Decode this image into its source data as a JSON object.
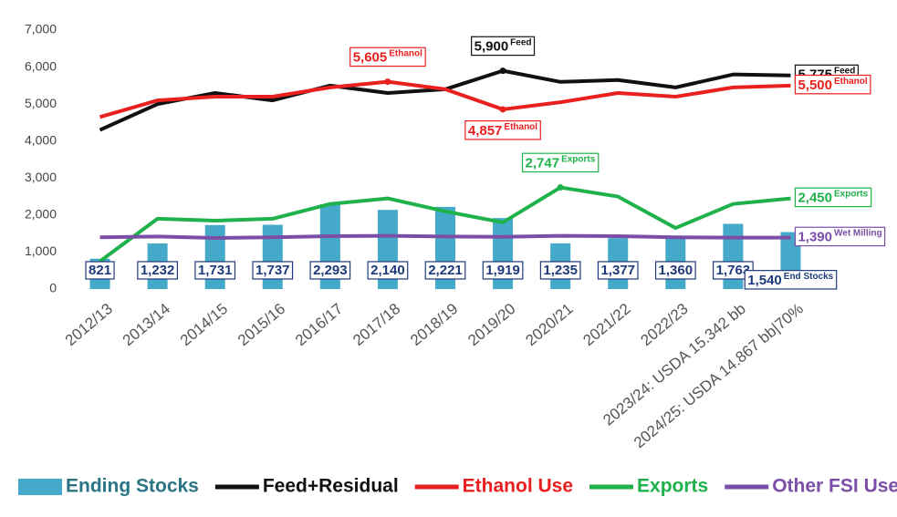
{
  "chart_data": {
    "type": "combo",
    "categories": [
      "2012/13",
      "2013/14",
      "2014/15",
      "2015/16",
      "2016/17",
      "2017/18",
      "2018/19",
      "2019/20",
      "2020/21",
      "2021/22",
      "2022/23",
      "2023/24: USDA 15.342 bb",
      "2024/25: USDA 14.867 bb|70%"
    ],
    "ylim": [
      0,
      7000
    ],
    "yticks": [
      0,
      {
        "value": 1000,
        "label": "1,000"
      },
      {
        "value": 2000,
        "label": "2,000"
      },
      {
        "value": 3000,
        "label": "3,000"
      },
      {
        "value": 4000,
        "label": "4,000"
      },
      {
        "value": 5000,
        "label": "5,000"
      },
      {
        "value": 6000,
        "label": "6,000"
      },
      {
        "value": 7000,
        "label": "7,000"
      }
    ],
    "grid": false,
    "legend": "bottom",
    "series": [
      {
        "name": "Ending Stocks",
        "type": "bar",
        "color": "#45a9c9",
        "text_color": "#2a7485",
        "label_color": "#1e3a7a",
        "values": [
          821,
          1232,
          1731,
          1737,
          2293,
          2140,
          2221,
          1919,
          1235,
          1377,
          1360,
          1763,
          1540
        ],
        "value_labels": [
          "821",
          "1,232",
          "1,731",
          "1,737",
          "2,293",
          "2,140",
          "2,221",
          "1,919",
          "1,235",
          "1,377",
          "1,360",
          "1,763",
          "1,540"
        ],
        "value_notes": [
          null,
          null,
          null,
          null,
          null,
          null,
          null,
          null,
          null,
          null,
          null,
          null,
          "End Stocks"
        ]
      },
      {
        "name": "Feed+Residual",
        "type": "line",
        "color": "#111111",
        "text_color": "#111111",
        "label_color": "#111111",
        "values": [
          4300,
          5000,
          5300,
          5100,
          5500,
          5300,
          5400,
          5900,
          5600,
          5650,
          5450,
          5800,
          5775
        ],
        "value_labels": [
          null,
          null,
          null,
          null,
          null,
          null,
          null,
          "5,900",
          null,
          null,
          null,
          null,
          "5,775"
        ],
        "value_notes": [
          null,
          null,
          null,
          null,
          null,
          null,
          null,
          "Feed",
          null,
          null,
          null,
          null,
          "Feed"
        ]
      },
      {
        "name": "Ethanol Use",
        "type": "line",
        "color": "#e8201f",
        "text_color": "#e8201f",
        "label_color": "#e8201f",
        "values": [
          4650,
          5100,
          5200,
          5200,
          5450,
          5605,
          5400,
          4857,
          5050,
          5300,
          5200,
          5450,
          5500
        ],
        "value_labels": [
          null,
          null,
          null,
          null,
          null,
          "5,605",
          null,
          "4,857",
          null,
          null,
          null,
          null,
          "5,500"
        ],
        "value_notes": [
          null,
          null,
          null,
          null,
          null,
          "Ethanol",
          null,
          "Ethanol",
          null,
          null,
          null,
          null,
          "Ethanol"
        ]
      },
      {
        "name": "Exports",
        "type": "line",
        "color": "#1fb14a",
        "text_color": "#1fb14a",
        "label_color": "#1fb14a",
        "values": [
          750,
          1900,
          1850,
          1900,
          2300,
          2450,
          2100,
          1800,
          2747,
          2500,
          1650,
          2300,
          2450
        ],
        "value_labels": [
          null,
          null,
          null,
          null,
          null,
          null,
          null,
          null,
          "2,747",
          null,
          null,
          null,
          "2,450"
        ],
        "value_notes": [
          null,
          null,
          null,
          null,
          null,
          null,
          null,
          null,
          "Exports",
          null,
          null,
          null,
          "Exports"
        ]
      },
      {
        "name": "Other FSI Use",
        "type": "line",
        "color": "#7b4fa8",
        "text_color": "#7b4fa8",
        "label_color": "#7b4fa8",
        "values": [
          1400,
          1420,
          1380,
          1400,
          1430,
          1440,
          1420,
          1410,
          1440,
          1430,
          1400,
          1390,
          1390
        ],
        "value_labels": [
          null,
          null,
          null,
          null,
          null,
          null,
          null,
          null,
          null,
          null,
          null,
          null,
          "1,390"
        ],
        "value_notes": [
          null,
          null,
          null,
          null,
          null,
          null,
          null,
          null,
          null,
          null,
          null,
          null,
          "Wet Milling"
        ]
      }
    ]
  }
}
